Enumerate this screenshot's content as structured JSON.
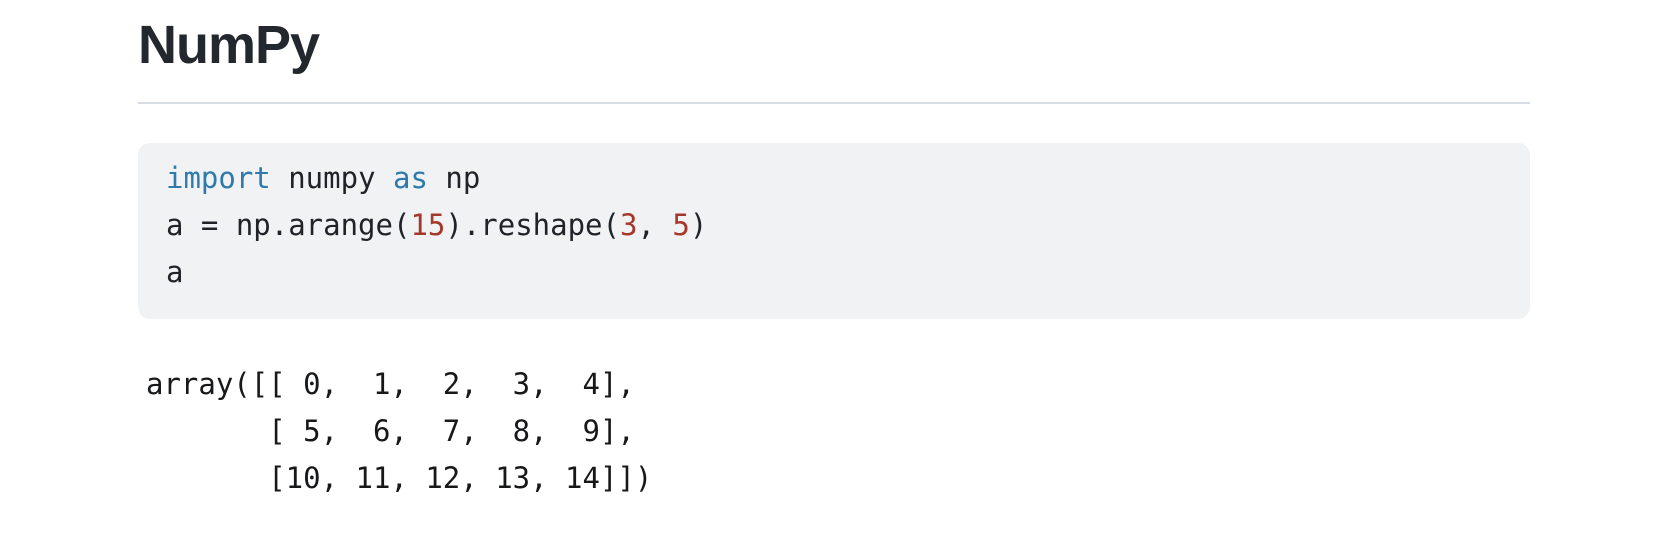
{
  "page": {
    "title": "NumPy"
  },
  "colors": {
    "page_bg": "#ffffff",
    "heading_text": "#23272e",
    "divider": "#d8dde3",
    "code_bg": "#f0f2f4",
    "code_text": "#1f2328",
    "keyword": "#2e7bab",
    "number": "#a5372b",
    "output_text": "#17181a"
  },
  "code_cell": {
    "language": "python",
    "lines": [
      [
        {
          "t": "import",
          "c": "kw"
        },
        {
          "t": " numpy ",
          "c": "plain"
        },
        {
          "t": "as",
          "c": "kw"
        },
        {
          "t": " np",
          "c": "plain"
        }
      ],
      [
        {
          "t": "a = np.arange(",
          "c": "plain"
        },
        {
          "t": "15",
          "c": "num"
        },
        {
          "t": ").reshape(",
          "c": "plain"
        },
        {
          "t": "3",
          "c": "num"
        },
        {
          "t": ", ",
          "c": "plain"
        },
        {
          "t": "5",
          "c": "num"
        },
        {
          "t": ")",
          "c": "plain"
        }
      ],
      [
        {
          "t": "a",
          "c": "plain"
        }
      ]
    ]
  },
  "output_cell": {
    "lines": [
      "array([[ 0,  1,  2,  3,  4],",
      "       [ 5,  6,  7,  8,  9],",
      "       [10, 11, 12, 13, 14]])"
    ]
  }
}
